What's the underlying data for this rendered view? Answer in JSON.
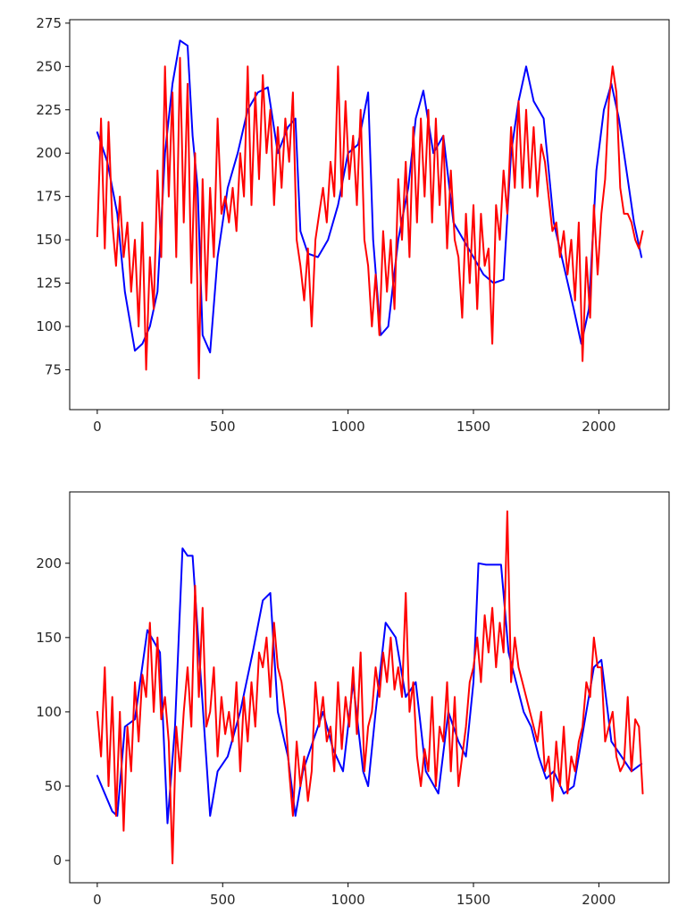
{
  "chart_data": [
    {
      "type": "line",
      "title": "",
      "xlabel": "",
      "ylabel": "",
      "xlim": [
        -110,
        2280
      ],
      "ylim": [
        52,
        277
      ],
      "xticks": [
        0,
        500,
        1000,
        1500,
        2000
      ],
      "xtick_labels": [
        "0",
        "500",
        "1000",
        "1500",
        "2000"
      ],
      "yticks": [
        75,
        100,
        125,
        150,
        175,
        200,
        225,
        250,
        275
      ],
      "ytick_labels": [
        "75",
        "100",
        "125",
        "150",
        "175",
        "200",
        "225",
        "250",
        "275"
      ],
      "grid": false,
      "series": [
        {
          "color": "#0000ff",
          "x": [
            0,
            40,
            80,
            110,
            150,
            180,
            210,
            240,
            270,
            300,
            330,
            360,
            380,
            400,
            420,
            450,
            480,
            520,
            560,
            600,
            640,
            680,
            720,
            760,
            790,
            810,
            840,
            880,
            920,
            960,
            1000,
            1040,
            1080,
            1100,
            1130,
            1160,
            1200,
            1240,
            1270,
            1300,
            1340,
            1380,
            1420,
            1460,
            1500,
            1540,
            1580,
            1620,
            1650,
            1680,
            1710,
            1740,
            1780,
            1820,
            1860,
            1900,
            1930,
            1960,
            1990,
            2020,
            2050,
            2080,
            2110,
            2140,
            2170
          ],
          "y": [
            212,
            195,
            165,
            120,
            86,
            90,
            100,
            120,
            200,
            240,
            265,
            262,
            210,
            180,
            95,
            85,
            140,
            180,
            200,
            225,
            235,
            238,
            200,
            215,
            220,
            155,
            142,
            140,
            150,
            170,
            200,
            205,
            235,
            150,
            95,
            100,
            150,
            180,
            220,
            236,
            200,
            210,
            160,
            150,
            140,
            130,
            125,
            127,
            200,
            230,
            250,
            230,
            220,
            160,
            135,
            110,
            90,
            110,
            190,
            225,
            240,
            220,
            190,
            160,
            140
          ]
        },
        {
          "color": "#ff0000",
          "x": [
            0,
            15,
            30,
            45,
            60,
            75,
            90,
            105,
            120,
            135,
            150,
            165,
            180,
            195,
            210,
            225,
            240,
            255,
            270,
            285,
            300,
            315,
            330,
            345,
            360,
            375,
            390,
            405,
            420,
            435,
            450,
            465,
            480,
            495,
            510,
            525,
            540,
            555,
            570,
            585,
            600,
            615,
            630,
            645,
            660,
            675,
            690,
            705,
            720,
            735,
            750,
            765,
            780,
            795,
            810,
            825,
            840,
            855,
            870,
            885,
            900,
            915,
            930,
            945,
            960,
            975,
            990,
            1005,
            1020,
            1035,
            1050,
            1065,
            1080,
            1095,
            1110,
            1125,
            1140,
            1155,
            1170,
            1185,
            1200,
            1215,
            1230,
            1245,
            1260,
            1275,
            1290,
            1305,
            1320,
            1335,
            1350,
            1365,
            1380,
            1395,
            1410,
            1425,
            1440,
            1455,
            1470,
            1485,
            1500,
            1515,
            1530,
            1545,
            1560,
            1575,
            1590,
            1605,
            1620,
            1635,
            1650,
            1665,
            1680,
            1695,
            1710,
            1725,
            1740,
            1755,
            1770,
            1785,
            1800,
            1815,
            1830,
            1845,
            1860,
            1875,
            1890,
            1905,
            1920,
            1935,
            1950,
            1965,
            1980,
            1995,
            2010,
            2025,
            2040,
            2055,
            2070,
            2085,
            2100,
            2115,
            2130,
            2145,
            2160,
            2175
          ],
          "y": [
            152,
            220,
            145,
            218,
            160,
            135,
            175,
            140,
            160,
            120,
            150,
            100,
            160,
            75,
            140,
            110,
            190,
            140,
            250,
            175,
            235,
            140,
            255,
            160,
            240,
            125,
            200,
            70,
            185,
            115,
            180,
            140,
            220,
            165,
            175,
            160,
            180,
            155,
            200,
            175,
            250,
            170,
            235,
            185,
            245,
            200,
            225,
            170,
            215,
            180,
            220,
            195,
            235,
            150,
            135,
            115,
            145,
            100,
            150,
            165,
            180,
            160,
            195,
            175,
            250,
            175,
            230,
            185,
            210,
            170,
            225,
            150,
            135,
            100,
            130,
            95,
            155,
            120,
            150,
            110,
            185,
            150,
            195,
            140,
            215,
            160,
            220,
            175,
            225,
            160,
            220,
            170,
            210,
            145,
            190,
            150,
            140,
            105,
            165,
            125,
            170,
            110,
            165,
            135,
            145,
            90,
            170,
            150,
            190,
            165,
            215,
            180,
            230,
            180,
            225,
            180,
            215,
            175,
            205,
            195,
            175,
            155,
            160,
            140,
            155,
            130,
            150,
            115,
            160,
            80,
            140,
            105,
            170,
            130,
            165,
            185,
            230,
            250,
            235,
            180,
            165,
            165,
            160,
            150,
            145,
            155
          ]
        }
      ]
    },
    {
      "type": "line",
      "title": "",
      "xlabel": "",
      "ylabel": "",
      "xlim": [
        -110,
        2280
      ],
      "ylim": [
        -15,
        248
      ],
      "xticks": [
        0,
        500,
        1000,
        1500,
        2000
      ],
      "xtick_labels": [
        "0",
        "500",
        "1000",
        "1500",
        "2000"
      ],
      "yticks": [
        0,
        50,
        100,
        150,
        200
      ],
      "ytick_labels": [
        "0",
        "50",
        "100",
        "150",
        "200"
      ],
      "grid": false,
      "series": [
        {
          "color": "#0000ff",
          "x": [
            0,
            30,
            60,
            80,
            110,
            150,
            200,
            250,
            280,
            310,
            340,
            360,
            380,
            410,
            430,
            450,
            480,
            520,
            570,
            620,
            660,
            690,
            720,
            760,
            790,
            820,
            860,
            900,
            940,
            980,
            1020,
            1060,
            1080,
            1110,
            1150,
            1190,
            1230,
            1270,
            1310,
            1360,
            1400,
            1440,
            1470,
            1500,
            1520,
            1550,
            1580,
            1610,
            1640,
            1670,
            1700,
            1730,
            1760,
            1790,
            1820,
            1860,
            1900,
            1940,
            1980,
            2010,
            2050,
            2090,
            2130,
            2170
          ],
          "y": [
            57,
            45,
            33,
            30,
            90,
            95,
            155,
            140,
            25,
            90,
            210,
            205,
            205,
            130,
            80,
            30,
            60,
            70,
            100,
            140,
            175,
            180,
            100,
            70,
            30,
            60,
            80,
            100,
            75,
            60,
            120,
            60,
            50,
            100,
            160,
            150,
            110,
            120,
            60,
            45,
            100,
            80,
            70,
            120,
            200,
            199,
            199,
            199,
            140,
            120,
            100,
            90,
            70,
            55,
            60,
            45,
            50,
            90,
            130,
            135,
            80,
            70,
            60,
            65
          ]
        },
        {
          "color": "#ff0000",
          "x": [
            0,
            15,
            30,
            45,
            60,
            75,
            90,
            105,
            120,
            135,
            150,
            165,
            180,
            195,
            210,
            225,
            240,
            255,
            270,
            285,
            300,
            315,
            330,
            345,
            360,
            375,
            390,
            405,
            420,
            435,
            450,
            465,
            480,
            495,
            510,
            525,
            540,
            555,
            570,
            585,
            600,
            615,
            630,
            645,
            660,
            675,
            690,
            705,
            720,
            735,
            750,
            765,
            780,
            795,
            810,
            825,
            840,
            855,
            870,
            885,
            900,
            915,
            930,
            945,
            960,
            975,
            990,
            1005,
            1020,
            1035,
            1050,
            1065,
            1080,
            1095,
            1110,
            1125,
            1140,
            1155,
            1170,
            1185,
            1200,
            1215,
            1230,
            1245,
            1260,
            1275,
            1290,
            1305,
            1320,
            1335,
            1350,
            1365,
            1380,
            1395,
            1410,
            1425,
            1440,
            1455,
            1470,
            1485,
            1500,
            1515,
            1530,
            1545,
            1560,
            1575,
            1590,
            1605,
            1620,
            1635,
            1650,
            1665,
            1680,
            1695,
            1710,
            1725,
            1740,
            1755,
            1770,
            1785,
            1800,
            1815,
            1830,
            1845,
            1860,
            1875,
            1890,
            1905,
            1920,
            1935,
            1950,
            1965,
            1980,
            1995,
            2010,
            2025,
            2040,
            2055,
            2070,
            2085,
            2100,
            2115,
            2130,
            2145,
            2160,
            2175
          ],
          "y": [
            100,
            70,
            130,
            50,
            110,
            30,
            100,
            20,
            90,
            60,
            120,
            80,
            125,
            110,
            160,
            100,
            150,
            95,
            110,
            80,
            -2,
            90,
            60,
            100,
            130,
            90,
            185,
            110,
            170,
            90,
            100,
            130,
            70,
            110,
            85,
            100,
            80,
            120,
            60,
            110,
            80,
            120,
            90,
            140,
            130,
            150,
            110,
            160,
            130,
            120,
            100,
            60,
            30,
            80,
            50,
            70,
            40,
            60,
            120,
            90,
            110,
            80,
            90,
            60,
            120,
            75,
            110,
            90,
            130,
            85,
            140,
            60,
            90,
            100,
            130,
            110,
            140,
            120,
            150,
            115,
            130,
            110,
            180,
            100,
            120,
            70,
            50,
            75,
            60,
            110,
            50,
            90,
            80,
            120,
            60,
            110,
            50,
            70,
            90,
            120,
            130,
            150,
            120,
            165,
            140,
            170,
            130,
            160,
            140,
            235,
            120,
            150,
            130,
            120,
            110,
            100,
            90,
            80,
            100,
            60,
            70,
            40,
            80,
            50,
            90,
            45,
            70,
            60,
            80,
            90,
            120,
            110,
            150,
            130,
            130,
            80,
            90,
            100,
            70,
            60,
            65,
            110,
            60,
            95,
            90,
            45
          ]
        }
      ]
    }
  ]
}
